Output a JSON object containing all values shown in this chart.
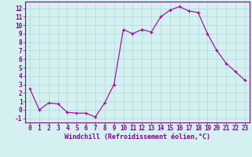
{
  "x": [
    0,
    1,
    2,
    3,
    4,
    5,
    6,
    7,
    8,
    9,
    10,
    11,
    12,
    13,
    14,
    15,
    16,
    17,
    18,
    19,
    20,
    21,
    22,
    23
  ],
  "y": [
    2.5,
    0.0,
    0.8,
    0.7,
    -0.3,
    -0.4,
    -0.4,
    -0.85,
    0.8,
    3.0,
    9.5,
    9.0,
    9.5,
    9.2,
    11.0,
    11.8,
    12.2,
    11.7,
    11.5,
    9.0,
    7.0,
    5.5,
    4.5,
    3.5
  ],
  "line_color": "#990099",
  "marker_color": "#990099",
  "bg_color": "#d4f0f0",
  "grid_color": "#b0d8d8",
  "xlabel": "Windchill (Refroidissement éolien,°C)",
  "ylabel": "",
  "xlim": [
    -0.5,
    23.5
  ],
  "ylim": [
    -1.5,
    12.8
  ],
  "yticks": [
    -1,
    0,
    1,
    2,
    3,
    4,
    5,
    6,
    7,
    8,
    9,
    10,
    11,
    12
  ],
  "xticks": [
    0,
    1,
    2,
    3,
    4,
    5,
    6,
    7,
    8,
    9,
    10,
    11,
    12,
    13,
    14,
    15,
    16,
    17,
    18,
    19,
    20,
    21,
    22,
    23
  ],
  "tick_label_color": "#880088",
  "axis_color": "#880088",
  "xlabel_color": "#880088",
  "font_size": 5.5,
  "xlabel_fontsize": 6.0
}
